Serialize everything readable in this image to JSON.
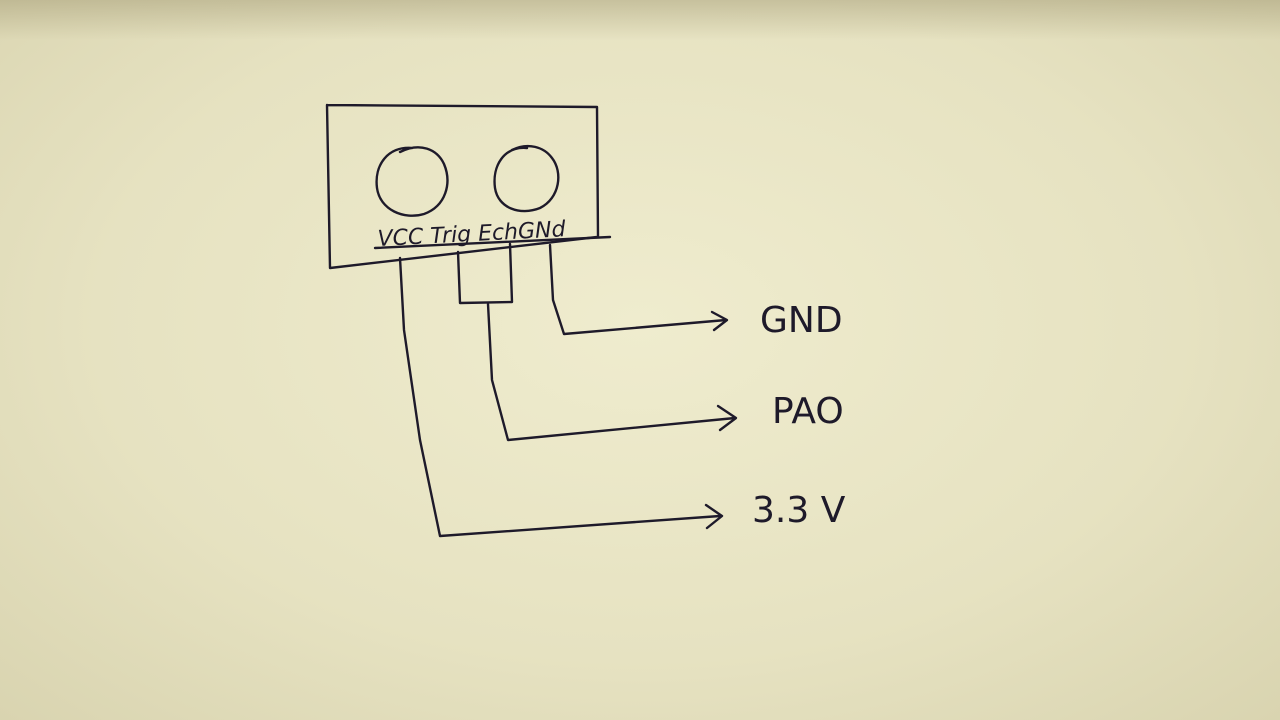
{
  "sensor": {
    "pins": [
      "Vcc",
      "Trig",
      "Echo",
      "GND"
    ],
    "pin_label_text": "VCC Trig EchGNd"
  },
  "connections": [
    {
      "pin": "GND",
      "target": "GND"
    },
    {
      "pin": "Trig/Echo",
      "target": "PA0"
    },
    {
      "pin": "Vcc",
      "target": "3.3 V"
    }
  ],
  "labels": {
    "gnd": "GND",
    "pa0": "PAO",
    "v33": "3.3 V"
  },
  "watermark": "",
  "colors": {
    "paper": "#e8e4c4",
    "ink": "#1e1a2a"
  }
}
